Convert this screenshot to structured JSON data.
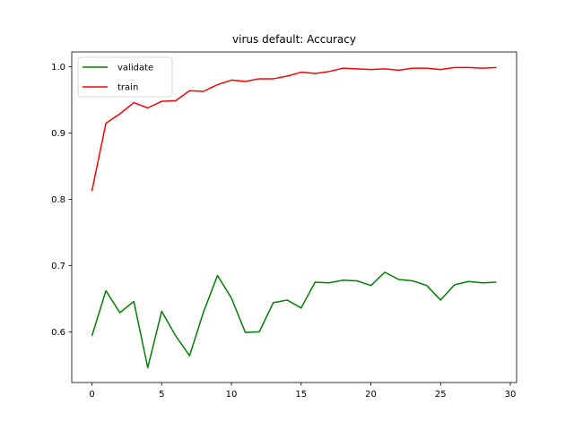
{
  "chart_data": {
    "type": "line",
    "title": "virus default: Accuracy",
    "xlabel": "",
    "ylabel": "",
    "xlim": [
      -1.45,
      30.45
    ],
    "ylim": [
      0.5235,
      1.0225
    ],
    "x_ticks": [
      0,
      5,
      10,
      15,
      20,
      25,
      30
    ],
    "y_ticks": [
      0.6,
      0.7,
      0.8,
      0.9,
      1.0
    ],
    "y_tick_labels": [
      "0.6",
      "0.7",
      "0.8",
      "0.9",
      "1.0"
    ],
    "grid": false,
    "legend_position": "upper-left",
    "x": [
      0,
      1,
      2,
      3,
      4,
      5,
      6,
      7,
      8,
      9,
      10,
      11,
      12,
      13,
      14,
      15,
      16,
      17,
      18,
      19,
      20,
      21,
      22,
      23,
      24,
      25,
      26,
      27,
      28,
      29
    ],
    "series": [
      {
        "name": "validate",
        "color": "#008000",
        "values": [
          0.594,
          0.662,
          0.629,
          0.646,
          0.546,
          0.631,
          0.594,
          0.564,
          0.63,
          0.685,
          0.651,
          0.599,
          0.6,
          0.644,
          0.648,
          0.636,
          0.675,
          0.674,
          0.678,
          0.677,
          0.67,
          0.69,
          0.679,
          0.677,
          0.67,
          0.648,
          0.671,
          0.676,
          0.674,
          0.675
        ]
      },
      {
        "name": "train",
        "color": "#ff0000",
        "values": [
          0.813,
          0.915,
          0.929,
          0.946,
          0.938,
          0.948,
          0.949,
          0.964,
          0.963,
          0.973,
          0.98,
          0.978,
          0.982,
          0.982,
          0.986,
          0.992,
          0.99,
          0.993,
          0.998,
          0.997,
          0.996,
          0.997,
          0.995,
          0.998,
          0.998,
          0.996,
          0.999,
          0.999,
          0.998,
          0.999
        ]
      }
    ]
  }
}
